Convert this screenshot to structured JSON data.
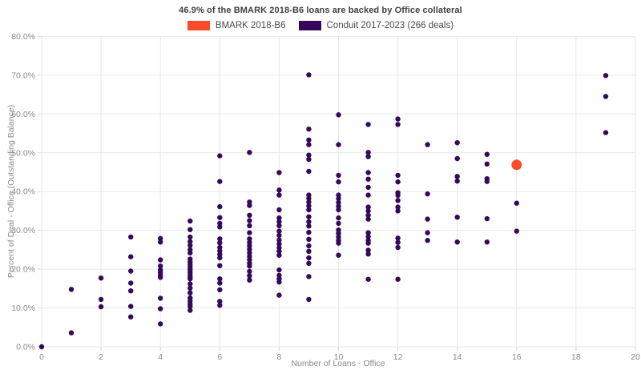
{
  "title": "46.9% of the BMARK 2018-B6 loans are backed by Office collateral",
  "legend": [
    {
      "label": "BMARK 2018-B6",
      "color": "#F84C2B"
    },
    {
      "label": "Conduit 2017-2023 (266 deals)",
      "color": "#36085C"
    }
  ],
  "colors": {
    "bmark": "#F84C2B",
    "conduit": "#36085C",
    "grid": "#e7e7e7",
    "tick": "#d6d6d6",
    "tick_text": "#8a8a8a",
    "title_text": "#3f3f3f"
  },
  "chart_data": {
    "type": "scatter",
    "title": "46.9% of the BMARK 2018-B6 loans are backed by Office collateral",
    "xlabel": "Number of Loans - Office",
    "ylabel": "Percent of Deal - Office (Outstanding Balance)",
    "xlim": [
      0,
      20
    ],
    "ylim": [
      0,
      80
    ],
    "x_ticks": [
      0,
      2,
      4,
      6,
      8,
      10,
      12,
      14,
      16,
      18,
      20
    ],
    "y_ticks": [
      0,
      10,
      20,
      30,
      40,
      50,
      60,
      70,
      80
    ],
    "y_tick_labels": [
      "0.0%",
      "10.0%",
      "20.0%",
      "30.0%",
      "40.0%",
      "50.0%",
      "60.0%",
      "70.0%",
      "80.0%"
    ],
    "grid": true,
    "legend_position": "top",
    "series": [
      {
        "name": "Conduit 2017-2023 (266 deals)",
        "color": "#36085C",
        "marker_radius": 3.2,
        "points": [
          [
            0,
            0.0
          ],
          [
            1,
            14.8
          ],
          [
            1,
            3.6
          ],
          [
            2,
            17.7
          ],
          [
            2,
            12.2
          ],
          [
            2,
            10.3
          ],
          [
            3,
            28.3
          ],
          [
            3,
            23.2
          ],
          [
            3,
            19.5
          ],
          [
            3,
            16.4
          ],
          [
            3,
            14.4
          ],
          [
            3,
            10.4
          ],
          [
            3,
            7.7
          ],
          [
            4,
            27.9
          ],
          [
            4,
            27.0
          ],
          [
            4,
            22.4
          ],
          [
            4,
            20.8
          ],
          [
            4,
            19.8
          ],
          [
            4,
            19.1
          ],
          [
            4,
            18.5
          ],
          [
            4,
            17.9
          ],
          [
            4,
            12.5
          ],
          [
            4,
            9.8
          ],
          [
            4,
            5.9
          ],
          [
            5,
            32.4
          ],
          [
            5,
            30.2
          ],
          [
            5,
            28.3
          ],
          [
            5,
            27.1
          ],
          [
            5,
            26.1
          ],
          [
            5,
            25.0
          ],
          [
            5,
            24.2
          ],
          [
            5,
            22.6
          ],
          [
            5,
            21.9
          ],
          [
            5,
            21.2
          ],
          [
            5,
            20.5
          ],
          [
            5,
            19.9
          ],
          [
            5,
            19.2
          ],
          [
            5,
            18.6
          ],
          [
            5,
            18.0
          ],
          [
            5,
            17.5
          ],
          [
            5,
            16.2
          ],
          [
            5,
            15.1
          ],
          [
            5,
            13.9
          ],
          [
            5,
            12.6
          ],
          [
            5,
            11.8
          ],
          [
            5,
            11.0
          ],
          [
            5,
            10.4
          ],
          [
            5,
            9.4
          ],
          [
            6,
            49.2
          ],
          [
            6,
            42.6
          ],
          [
            6,
            36.1
          ],
          [
            6,
            33.3
          ],
          [
            6,
            31.8
          ],
          [
            6,
            30.9
          ],
          [
            6,
            27.8
          ],
          [
            6,
            26.8
          ],
          [
            6,
            25.6
          ],
          [
            6,
            24.7
          ],
          [
            6,
            23.8
          ],
          [
            6,
            22.9
          ],
          [
            6,
            20.9
          ],
          [
            6,
            17.5
          ],
          [
            6,
            16.4
          ],
          [
            6,
            14.7
          ],
          [
            6,
            11.7
          ],
          [
            6,
            10.7
          ],
          [
            7,
            50.1
          ],
          [
            7,
            37.3
          ],
          [
            7,
            36.4
          ],
          [
            7,
            33.9
          ],
          [
            7,
            32.5
          ],
          [
            7,
            31.2
          ],
          [
            7,
            29.4
          ],
          [
            7,
            27.8
          ],
          [
            7,
            26.9
          ],
          [
            7,
            26.0
          ],
          [
            7,
            25.1
          ],
          [
            7,
            24.2
          ],
          [
            7,
            23.3
          ],
          [
            7,
            22.4
          ],
          [
            7,
            21.5
          ],
          [
            7,
            20.8
          ],
          [
            7,
            19.4
          ],
          [
            7,
            18.3
          ],
          [
            7,
            17.2
          ],
          [
            8,
            44.9
          ],
          [
            8,
            40.4
          ],
          [
            8,
            39.1
          ],
          [
            8,
            35.3
          ],
          [
            8,
            33.2
          ],
          [
            8,
            32.2
          ],
          [
            8,
            31.2
          ],
          [
            8,
            29.8
          ],
          [
            8,
            28.7
          ],
          [
            8,
            27.5
          ],
          [
            8,
            26.5
          ],
          [
            8,
            25.5
          ],
          [
            8,
            24.6
          ],
          [
            8,
            23.6
          ],
          [
            8,
            19.8
          ],
          [
            8,
            18.4
          ],
          [
            8,
            17.5
          ],
          [
            8,
            16.7
          ],
          [
            8,
            13.3
          ],
          [
            9,
            70.1
          ],
          [
            9,
            56.1
          ],
          [
            9,
            53.3
          ],
          [
            9,
            52.1
          ],
          [
            9,
            49.4
          ],
          [
            9,
            48.3
          ],
          [
            9,
            45.2
          ],
          [
            9,
            39.1
          ],
          [
            9,
            38.2
          ],
          [
            9,
            37.3
          ],
          [
            9,
            36.3
          ],
          [
            9,
            35.3
          ],
          [
            9,
            33.5
          ],
          [
            9,
            32.2
          ],
          [
            9,
            31.1
          ],
          [
            9,
            29.5
          ],
          [
            9,
            27.7
          ],
          [
            9,
            26.0
          ],
          [
            9,
            24.6
          ],
          [
            9,
            22.9
          ],
          [
            9,
            21.5
          ],
          [
            9,
            18.1
          ],
          [
            9,
            12.2
          ],
          [
            10,
            59.8
          ],
          [
            10,
            52.1
          ],
          [
            10,
            44.2
          ],
          [
            10,
            42.5
          ],
          [
            10,
            39.1
          ],
          [
            10,
            38.2
          ],
          [
            10,
            37.2
          ],
          [
            10,
            36.2
          ],
          [
            10,
            35.3
          ],
          [
            10,
            33.2
          ],
          [
            10,
            31.8
          ],
          [
            10,
            30.1
          ],
          [
            10,
            29.2
          ],
          [
            10,
            28.3
          ],
          [
            10,
            27.4
          ],
          [
            10,
            26.7
          ],
          [
            10,
            23.6
          ],
          [
            11,
            57.3
          ],
          [
            11,
            50.1
          ],
          [
            11,
            49.0
          ],
          [
            11,
            44.9
          ],
          [
            11,
            43.2
          ],
          [
            11,
            41.1
          ],
          [
            11,
            39.1
          ],
          [
            11,
            36.0
          ],
          [
            11,
            35.0
          ],
          [
            11,
            33.9
          ],
          [
            11,
            32.9
          ],
          [
            11,
            29.4
          ],
          [
            11,
            28.4
          ],
          [
            11,
            27.4
          ],
          [
            11,
            26.7
          ],
          [
            11,
            24.9
          ],
          [
            11,
            23.9
          ],
          [
            11,
            17.4
          ],
          [
            12,
            58.7
          ],
          [
            12,
            57.3
          ],
          [
            12,
            44.2
          ],
          [
            12,
            42.5
          ],
          [
            12,
            39.7
          ],
          [
            12,
            39.0
          ],
          [
            12,
            37.7
          ],
          [
            12,
            36.0
          ],
          [
            12,
            35.0
          ],
          [
            12,
            28.0
          ],
          [
            12,
            26.9
          ],
          [
            12,
            25.6
          ],
          [
            12,
            17.4
          ],
          [
            13,
            52.1
          ],
          [
            13,
            39.4
          ],
          [
            13,
            32.9
          ],
          [
            13,
            29.4
          ],
          [
            13,
            27.4
          ],
          [
            14,
            52.6
          ],
          [
            14,
            48.5
          ],
          [
            14,
            43.9
          ],
          [
            14,
            42.7
          ],
          [
            14,
            33.4
          ],
          [
            14,
            27.0
          ],
          [
            15,
            49.6
          ],
          [
            15,
            47.1
          ],
          [
            15,
            43.3
          ],
          [
            15,
            42.6
          ],
          [
            15,
            33.0
          ],
          [
            15,
            27.0
          ],
          [
            16,
            37.0
          ],
          [
            16,
            29.8
          ],
          [
            19,
            69.9
          ],
          [
            19,
            64.5
          ],
          [
            19,
            55.2
          ]
        ]
      },
      {
        "name": "BMARK 2018-B6",
        "color": "#F84C2B",
        "marker_radius": 6.5,
        "points": [
          [
            16,
            46.9
          ]
        ]
      }
    ]
  }
}
